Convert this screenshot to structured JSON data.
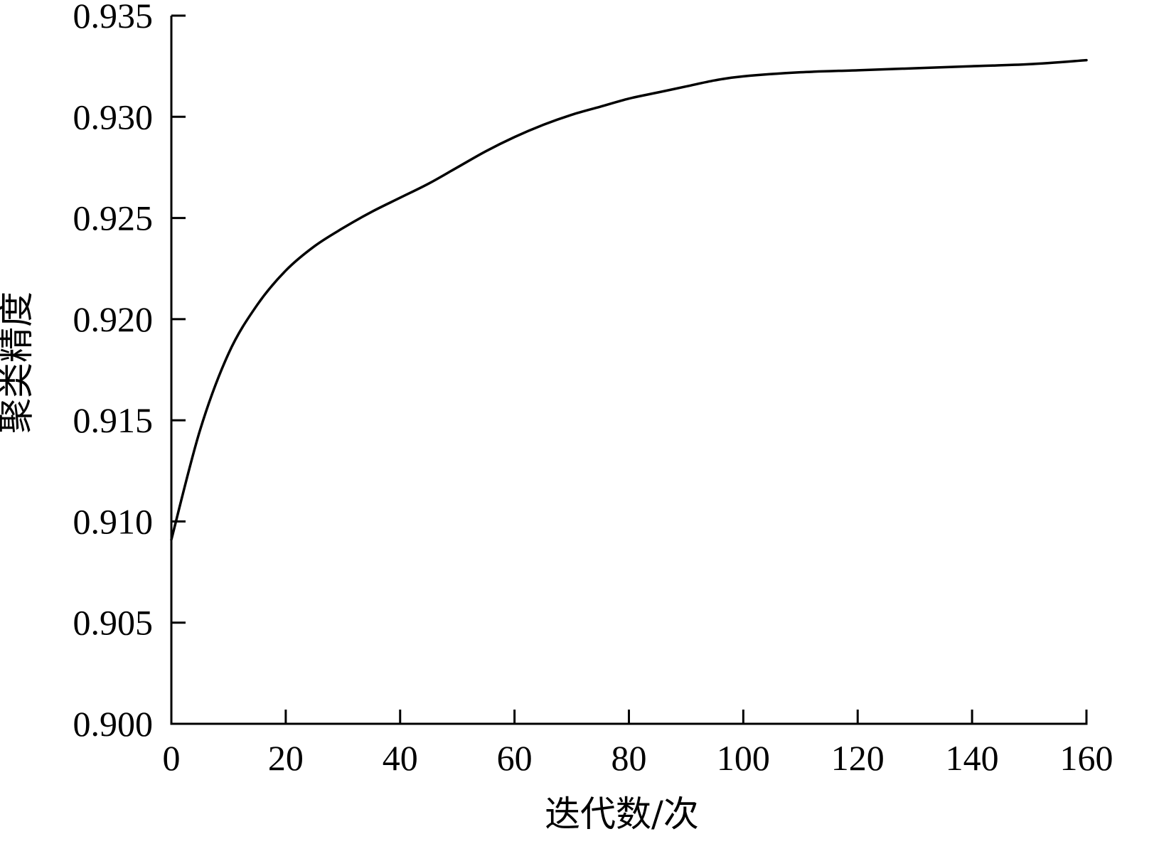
{
  "chart_data": {
    "type": "line",
    "title": "",
    "xlabel": "迭代数/次",
    "ylabel": "聚类精度",
    "xlim": [
      0,
      160
    ],
    "ylim": [
      0.9,
      0.935
    ],
    "x_ticks": [
      0,
      20,
      40,
      60,
      80,
      100,
      120,
      140,
      160
    ],
    "x_tick_labels": [
      "0",
      "20",
      "40",
      "60",
      "80",
      "100",
      "120",
      "140",
      "160"
    ],
    "y_ticks": [
      0.9,
      0.905,
      0.91,
      0.915,
      0.92,
      0.925,
      0.93,
      0.935
    ],
    "y_tick_labels": [
      "0.900",
      "0.905",
      "0.910",
      "0.915",
      "0.920",
      "0.925",
      "0.930",
      "0.935"
    ],
    "grid": false,
    "legend": "none",
    "line_color": "#000000",
    "series": [
      {
        "x": [
          0,
          5,
          10,
          15,
          20,
          25,
          30,
          35,
          40,
          45,
          50,
          55,
          60,
          65,
          70,
          75,
          80,
          85,
          90,
          95,
          100,
          110,
          120,
          130,
          140,
          150,
          160
        ],
        "values": [
          0.9091,
          0.9145,
          0.9183,
          0.9207,
          0.9224,
          0.9236,
          0.9245,
          0.9253,
          0.926,
          0.9267,
          0.9275,
          0.9283,
          0.929,
          0.9296,
          0.9301,
          0.9305,
          0.9309,
          0.9312,
          0.9315,
          0.9318,
          0.932,
          0.9322,
          0.9323,
          0.9324,
          0.9325,
          0.9326,
          0.9328
        ]
      }
    ]
  }
}
